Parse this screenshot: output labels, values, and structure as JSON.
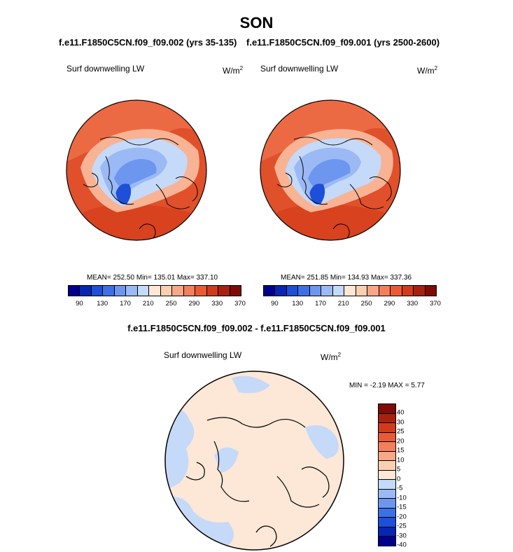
{
  "title": "SON",
  "colors": {
    "flwds": [
      "#00008c",
      "#0826b4",
      "#1d4fd8",
      "#3d70e6",
      "#6d96ee",
      "#9bb9f4",
      "#c5d9f9",
      "#fde7d6",
      "#fbcfb1",
      "#f8a787",
      "#f47f5d",
      "#ea5a34",
      "#d03b1c",
      "#a8210f",
      "#7e0b05"
    ],
    "diff": [
      "#00008c",
      "#0826b4",
      "#1d4fd8",
      "#3d70e6",
      "#6d96ee",
      "#9bb9f4",
      "#c5d9f9",
      "#fde7d6",
      "#fbcfb1",
      "#f8a787",
      "#f47f5d",
      "#ea5a34",
      "#d03b1c",
      "#a8210f",
      "#7e0b05"
    ]
  },
  "panels": {
    "left": {
      "case": "f.e11.F1850C5CN.f09_f09.002 (yrs 35-135)",
      "label": "Surf downwelling LW",
      "units": "W/m",
      "units_sup": "2",
      "stats": "MEAN= 252.50  Min= 135.01  Max= 337.10"
    },
    "right": {
      "case": "f.e11.F1850C5CN.f09_f09.001 (yrs 2500-2600)",
      "label": "Surf downwelling LW",
      "units": "W/m",
      "units_sup": "2",
      "stats": "MEAN= 251.85  Min= 134.93  Max= 337.36"
    },
    "diff": {
      "case": "f.e11.F1850C5CN.f09_f09.002 - f.e11.F1850C5CN.f09_f09.001",
      "label": "Surf downwelling LW",
      "units": "W/m",
      "units_sup": "2",
      "stats": "MIN =  -2.19 MAX =   5.77"
    }
  },
  "chart_data": [
    {
      "type": "heatmap",
      "projection": "north polar stereographic",
      "title": "f.e11.F1850C5CN.f09_f09.002 (yrs 35-135)",
      "variable": "Surf downwelling LW",
      "units": "W/m^2",
      "mean": 252.5,
      "min": 135.01,
      "max": 337.1,
      "colorbar_ticks": [
        "90",
        "130",
        "170",
        "210",
        "250",
        "290",
        "330",
        "370"
      ],
      "colorbar_levels": 15
    },
    {
      "type": "heatmap",
      "projection": "north polar stereographic",
      "title": "f.e11.F1850C5CN.f09_f09.001 (yrs 2500-2600)",
      "variable": "Surf downwelling LW",
      "units": "W/m^2",
      "mean": 251.85,
      "min": 134.93,
      "max": 337.36,
      "colorbar_ticks": [
        "90",
        "130",
        "170",
        "210",
        "250",
        "290",
        "330",
        "370"
      ],
      "colorbar_levels": 15
    },
    {
      "type": "heatmap",
      "projection": "north polar stereographic",
      "title": "f.e11.F1850C5CN.f09_f09.002 - f.e11.F1850C5CN.f09_f09.001",
      "variable": "Surf downwelling LW",
      "units": "W/m^2",
      "min": -2.19,
      "max": 5.77,
      "colorbar_ticks": [
        "40",
        "30",
        "25",
        "20",
        "15",
        "10",
        "5",
        "0",
        "-5",
        "-10",
        "-15",
        "-20",
        "-25",
        "-30",
        "-40"
      ],
      "colorbar_levels": 16
    }
  ]
}
